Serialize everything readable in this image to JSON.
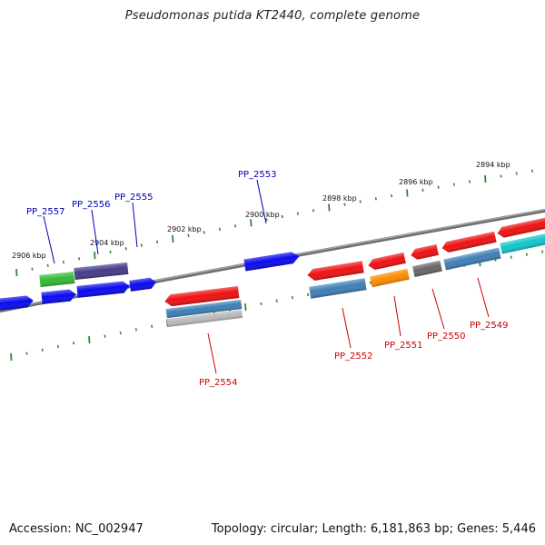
{
  "title": "Pseudomonas putida KT2440, complete genome",
  "footer": {
    "accession": "Accession: NC_002947",
    "summary": "Topology: circular; Length: 6,181,863 bp; Genes: 5,446"
  },
  "colors": {
    "backbone": "#808080",
    "tick": "#2f8a2f",
    "forward_label": "#0000bb",
    "reverse_label": "#cc0000",
    "gene_blue": "#0a0aee",
    "gene_red": "#ee1111",
    "gene_green": "#33bb33",
    "gene_purple": "#443d88",
    "gene_steel": "#3f7fb5",
    "gene_gray": "#666666",
    "gene_orange": "#ff8c00",
    "gene_cyan": "#12c6cc"
  },
  "scale": {
    "labels": [
      "2906 kbp",
      "2904 kbp",
      "2902 kbp",
      "2900 kbp",
      "2898 kbp",
      "2896 kbp",
      "2894 kbp"
    ]
  },
  "genes": [
    {
      "name": "PP_2557",
      "strand": "forward"
    },
    {
      "name": "PP_2556",
      "strand": "forward"
    },
    {
      "name": "PP_2555",
      "strand": "forward"
    },
    {
      "name": "PP_2553",
      "strand": "forward"
    },
    {
      "name": "PP_2554",
      "strand": "reverse"
    },
    {
      "name": "PP_2552",
      "strand": "reverse"
    },
    {
      "name": "PP_2551",
      "strand": "reverse"
    },
    {
      "name": "PP_2550",
      "strand": "reverse"
    },
    {
      "name": "PP_2549",
      "strand": "reverse"
    }
  ]
}
